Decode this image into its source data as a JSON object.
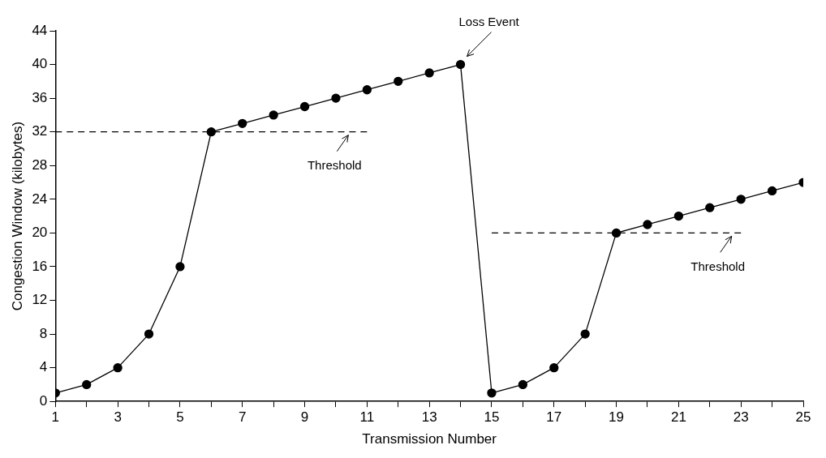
{
  "chart_data": {
    "type": "line",
    "xlabel": "Transmission Number",
    "ylabel": "Congestion Window (kilobytes)",
    "xlim": [
      1,
      25
    ],
    "xticks": [
      1,
      {
        "value": 2,
        "label": null
      },
      3,
      {
        "value": 4,
        "label": null
      },
      5,
      {
        "value": 6,
        "label": null
      },
      7,
      {
        "value": 8,
        "label": null
      },
      9,
      {
        "value": 10,
        "label": null
      },
      11,
      {
        "value": 12,
        "label": null
      },
      13,
      {
        "value": 14,
        "label": null
      },
      15,
      {
        "value": 16,
        "label": null
      },
      17,
      {
        "value": 18,
        "label": null
      },
      19,
      {
        "value": 20,
        "label": null
      },
      21,
      {
        "value": 22,
        "label": null
      },
      23,
      {
        "value": 24,
        "label": null
      },
      25
    ],
    "ylim": [
      0,
      44
    ],
    "yticks": [
      0,
      4,
      8,
      12,
      16,
      20,
      24,
      28,
      32,
      36,
      40,
      44
    ],
    "grid": false,
    "legend": false,
    "series": [
      {
        "color": "#000000",
        "marker": "circle",
        "line_style": "solid",
        "x": [
          1,
          2,
          3,
          4,
          5,
          6,
          7,
          8,
          9,
          10,
          11,
          12,
          13,
          14,
          15,
          16,
          17,
          18,
          19,
          20,
          21,
          22,
          23,
          24,
          25
        ],
        "values": [
          1,
          2,
          4,
          8,
          16,
          32,
          33,
          34,
          35,
          36,
          37,
          38,
          39,
          40,
          1,
          2,
          4,
          8,
          20,
          21,
          22,
          23,
          24,
          25,
          26
        ]
      },
      {
        "color": "#000000",
        "marker": "none",
        "line_style": "dashed",
        "x": [
          1,
          11
        ],
        "values": [
          32,
          32
        ]
      },
      {
        "color": "#000000",
        "marker": "none",
        "line_style": "dashed",
        "x": [
          15,
          23
        ],
        "values": [
          20,
          20
        ]
      }
    ],
    "annotations": [
      {
        "text": "Loss Event",
        "x": 14,
        "y": 40
      },
      {
        "text": "Threshold",
        "x": 10.4,
        "y": 32
      },
      {
        "text": "Threshold",
        "x": 22.7,
        "y": 20
      }
    ]
  }
}
